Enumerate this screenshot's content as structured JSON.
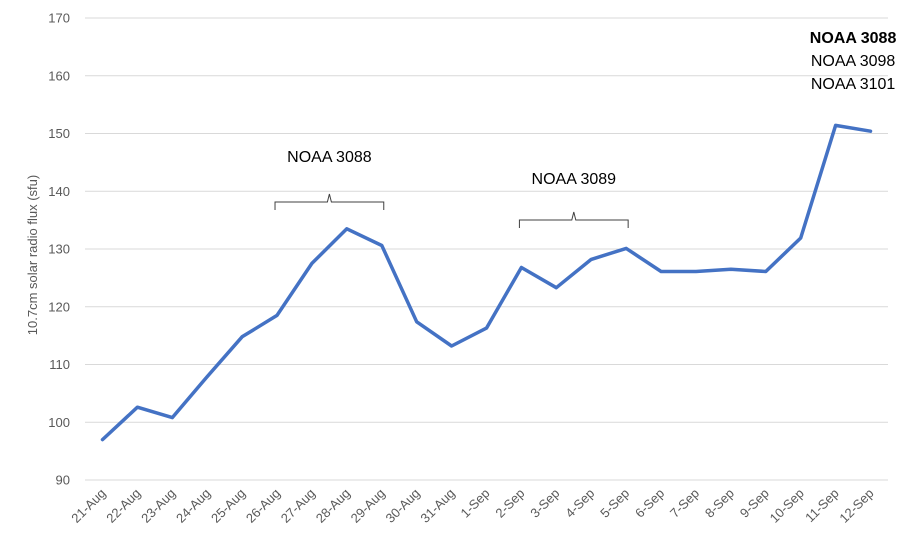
{
  "chart_data": {
    "type": "line",
    "title": "",
    "xlabel": "",
    "ylabel": "10.7cm solar radio flux (sfu)",
    "ylim": [
      90,
      170
    ],
    "yticks": [
      90,
      100,
      110,
      120,
      130,
      140,
      150,
      160,
      170
    ],
    "grid": true,
    "legend": "none",
    "line_color": "#4472C4",
    "categories": [
      "21-Aug",
      "22-Aug",
      "23-Aug",
      "24-Aug",
      "25-Aug",
      "26-Aug",
      "27-Aug",
      "28-Aug",
      "29-Aug",
      "30-Aug",
      "31-Aug",
      "1-Sep",
      "2-Sep",
      "3-Sep",
      "4-Sep",
      "5-Sep",
      "6-Sep",
      "7-Sep",
      "8-Sep",
      "9-Sep",
      "10-Sep",
      "11-Sep",
      "12-Sep"
    ],
    "series": [
      {
        "values": [
          97.0,
          102.6,
          100.8,
          107.9,
          114.8,
          118.5,
          127.5,
          133.5,
          130.6,
          117.4,
          113.2,
          116.3,
          126.8,
          123.3,
          128.2,
          130.1,
          126.1,
          126.1,
          126.5,
          126.1,
          131.9,
          151.4,
          150.4
        ]
      }
    ],
    "annotations": [
      {
        "lines": [
          {
            "text": "NOAA 3088",
            "bold": false
          }
        ],
        "bracket_from": "26-Aug",
        "bracket_to": "29-Aug"
      },
      {
        "lines": [
          {
            "text": "NOAA 3089",
            "bold": false
          }
        ],
        "bracket_from": "2-Sep",
        "bracket_to": "5-Sep"
      },
      {
        "lines": [
          {
            "text": "NOAA 3088",
            "bold": true
          },
          {
            "text": "NOAA 3098",
            "bold": false
          },
          {
            "text": "NOAA 3101",
            "bold": false
          }
        ],
        "bracket_from": null,
        "bracket_to": null
      }
    ]
  }
}
